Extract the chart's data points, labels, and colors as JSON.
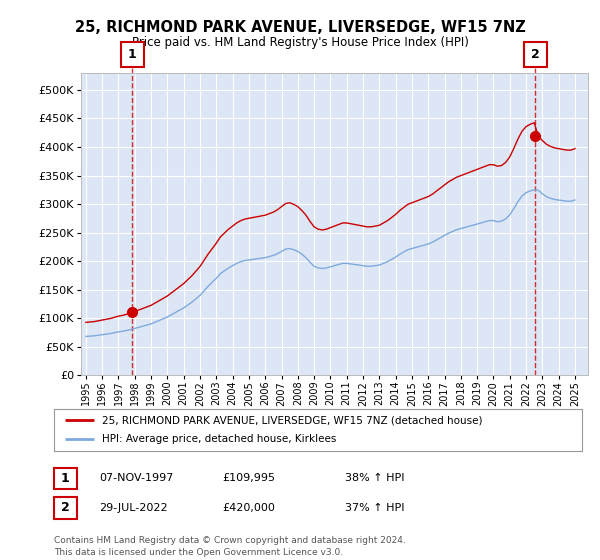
{
  "title_line1": "25, RICHMOND PARK AVENUE, LIVERSEDGE, WF15 7NZ",
  "title_line2": "Price paid vs. HM Land Registry's House Price Index (HPI)",
  "background_color": "#ffffff",
  "plot_bg_color": "#dce6f5",
  "grid_color": "#ffffff",
  "sale1_date_num": 1997.85,
  "sale1_price": 109995,
  "sale2_date_num": 2022.57,
  "sale2_price": 420000,
  "sale1_label": "1",
  "sale2_label": "2",
  "legend_line1": "25, RICHMOND PARK AVENUE, LIVERSEDGE, WF15 7NZ (detached house)",
  "legend_line2": "HPI: Average price, detached house, Kirklees",
  "table_row1": [
    "1",
    "07-NOV-1997",
    "£109,995",
    "38% ↑ HPI"
  ],
  "table_row2": [
    "2",
    "29-JUL-2022",
    "£420,000",
    "37% ↑ HPI"
  ],
  "footnote": "Contains HM Land Registry data © Crown copyright and database right 2024.\nThis data is licensed under the Open Government Licence v3.0.",
  "hpi_color": "#7faadd",
  "price_color": "#cc0000",
  "dashed_color": "#cc0000",
  "yticks": [
    0,
    50000,
    100000,
    150000,
    200000,
    250000,
    300000,
    350000,
    400000,
    450000,
    500000
  ],
  "ylim": [
    0,
    530000
  ],
  "xlim_start": 1994.7,
  "xlim_end": 2025.8,
  "xtick_years": [
    1995,
    1996,
    1997,
    1998,
    1999,
    2000,
    2001,
    2002,
    2003,
    2004,
    2005,
    2006,
    2007,
    2008,
    2009,
    2010,
    2011,
    2012,
    2013,
    2014,
    2015,
    2016,
    2017,
    2018,
    2019,
    2020,
    2021,
    2022,
    2023,
    2024,
    2025
  ]
}
